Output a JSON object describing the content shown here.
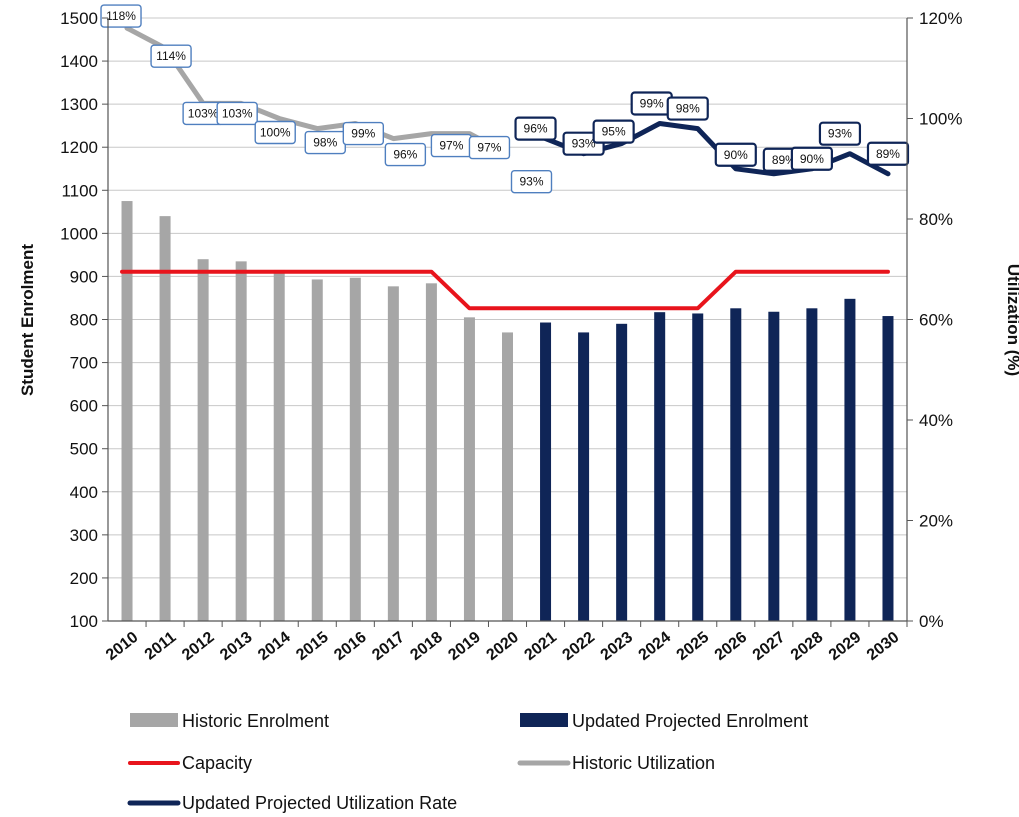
{
  "chart_data": {
    "type": "bar",
    "title": "",
    "categories": [
      "2010",
      "2011",
      "2012",
      "2013",
      "2014",
      "2015",
      "2016",
      "2017",
      "2018",
      "2019",
      "2020",
      "2021",
      "2022",
      "2023",
      "2024",
      "2025",
      "2026",
      "2027",
      "2028",
      "2029",
      "2030"
    ],
    "ylabel": "Student Enrolment",
    "y2label": "Utilization (%)",
    "ylim": [
      100,
      1500
    ],
    "y2lim": [
      0,
      120
    ],
    "yticks": [
      "100",
      "200",
      "300",
      "400",
      "500",
      "600",
      "700",
      "800",
      "900",
      "1000",
      "1100",
      "1200",
      "1300",
      "1400",
      "1500"
    ],
    "y2ticks": [
      "0%",
      "20%",
      "40%",
      "60%",
      "80%",
      "100%",
      "120%"
    ],
    "grid": true,
    "legend_position": "bottom",
    "series": [
      {
        "name": "Historic Enrolment",
        "kind": "bar",
        "axis": "left",
        "color": "#a6a6a6",
        "values": [
          1075,
          1040,
          940,
          935,
          915,
          893,
          897,
          877,
          884,
          805,
          770,
          null,
          null,
          null,
          null,
          null,
          null,
          null,
          null,
          null,
          null
        ]
      },
      {
        "name": "Updated Projected Enrolment",
        "kind": "bar",
        "axis": "left",
        "color": "#0f2557",
        "values": [
          null,
          null,
          null,
          null,
          null,
          null,
          null,
          null,
          null,
          null,
          null,
          793,
          770,
          790,
          817,
          814,
          826,
          818,
          826,
          848,
          808
        ]
      },
      {
        "name": "Capacity",
        "kind": "line",
        "axis": "left",
        "color": "#e8141c",
        "values": [
          911,
          911,
          911,
          911,
          911,
          911,
          911,
          911,
          911,
          826,
          826,
          826,
          826,
          826,
          826,
          826,
          911,
          911,
          911,
          911,
          911
        ]
      },
      {
        "name": "Historic Utilization",
        "kind": "line",
        "axis": "right",
        "color": "#a6a6a6",
        "values": [
          118,
          114,
          103,
          103,
          100,
          98,
          99,
          96,
          97,
          97,
          93,
          null,
          null,
          null,
          null,
          null,
          null,
          null,
          null,
          null,
          null
        ],
        "labels": [
          "118%",
          "114%",
          "103%",
          "103%",
          "100%",
          "98%",
          "99%",
          "96%",
          "97%",
          "97%",
          "93%",
          null,
          null,
          null,
          null,
          null,
          null,
          null,
          null,
          null,
          null
        ]
      },
      {
        "name": "Updated Projected Utilization Rate",
        "kind": "line",
        "axis": "right",
        "color": "#0f2557",
        "values": [
          null,
          null,
          null,
          null,
          null,
          null,
          null,
          null,
          null,
          null,
          null,
          96,
          93,
          95,
          99,
          98,
          90,
          89,
          90,
          93,
          89
        ],
        "labels": [
          null,
          null,
          null,
          null,
          null,
          null,
          null,
          null,
          null,
          null,
          null,
          "96%",
          "93%",
          "95%",
          "99%",
          "98%",
          "90%",
          "89%",
          "90%",
          "93%",
          "89%"
        ]
      }
    ]
  }
}
